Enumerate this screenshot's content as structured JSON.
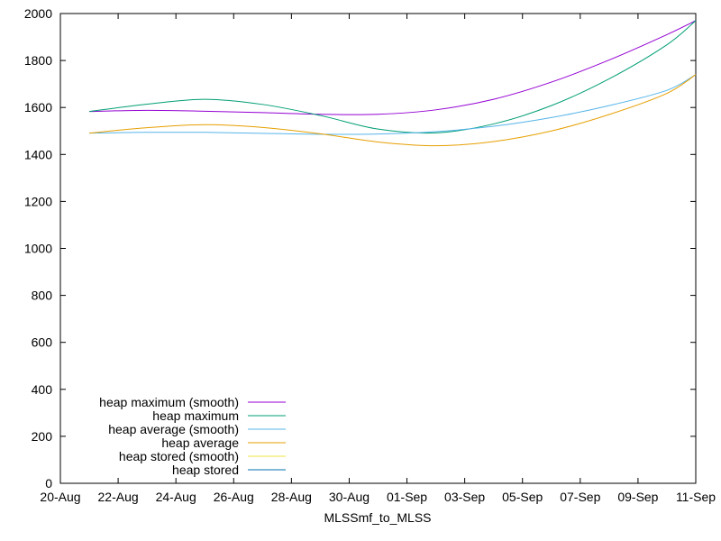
{
  "chart_data": {
    "type": "line",
    "title": "",
    "xlabel": "MLSSmf_to_MLSS",
    "ylabel": "",
    "ylim": [
      0,
      2000
    ],
    "yticks": [
      0,
      200,
      400,
      600,
      800,
      1000,
      1200,
      1400,
      1600,
      1800,
      2000
    ],
    "xlim": [
      "2024-08-20",
      "2024-09-11"
    ],
    "xticks": [
      {
        "date": "2024-08-20",
        "label": "20-Aug"
      },
      {
        "date": "2024-08-22",
        "label": "22-Aug"
      },
      {
        "date": "2024-08-24",
        "label": "24-Aug"
      },
      {
        "date": "2024-08-26",
        "label": "26-Aug"
      },
      {
        "date": "2024-08-28",
        "label": "28-Aug"
      },
      {
        "date": "2024-08-30",
        "label": "30-Aug"
      },
      {
        "date": "2024-09-01",
        "label": "01-Sep"
      },
      {
        "date": "2024-09-03",
        "label": "03-Sep"
      },
      {
        "date": "2024-09-05",
        "label": "05-Sep"
      },
      {
        "date": "2024-09-07",
        "label": "07-Sep"
      },
      {
        "date": "2024-09-09",
        "label": "09-Sep"
      },
      {
        "date": "2024-09-11",
        "label": "11-Sep"
      }
    ],
    "grid": false,
    "legend_position": "bottom-left",
    "series": [
      {
        "name": "heap maximum (smooth)",
        "color": "#9400d3",
        "points": [
          {
            "x": "2024-08-21",
            "y": 1583
          },
          {
            "x": "2024-08-23",
            "y": 1588
          },
          {
            "x": "2024-08-25",
            "y": 1584
          },
          {
            "x": "2024-08-27",
            "y": 1578
          },
          {
            "x": "2024-08-29",
            "y": 1571
          },
          {
            "x": "2024-08-31",
            "y": 1571
          },
          {
            "x": "2024-09-02",
            "y": 1590
          },
          {
            "x": "2024-09-04",
            "y": 1635
          },
          {
            "x": "2024-09-06",
            "y": 1708
          },
          {
            "x": "2024-09-08",
            "y": 1802
          },
          {
            "x": "2024-09-10",
            "y": 1910
          },
          {
            "x": "2024-09-11",
            "y": 1970
          }
        ]
      },
      {
        "name": "heap maximum",
        "color": "#009e73",
        "points": [
          {
            "x": "2024-08-21",
            "y": 1583
          },
          {
            "x": "2024-08-23",
            "y": 1614
          },
          {
            "x": "2024-08-25",
            "y": 1635
          },
          {
            "x": "2024-08-27",
            "y": 1613
          },
          {
            "x": "2024-08-29",
            "y": 1566
          },
          {
            "x": "2024-08-31",
            "y": 1508
          },
          {
            "x": "2024-09-02",
            "y": 1492
          },
          {
            "x": "2024-09-04",
            "y": 1530
          },
          {
            "x": "2024-09-06",
            "y": 1608
          },
          {
            "x": "2024-09-08",
            "y": 1722
          },
          {
            "x": "2024-09-10",
            "y": 1867
          },
          {
            "x": "2024-09-11",
            "y": 1970
          }
        ]
      },
      {
        "name": "heap average (smooth)",
        "color": "#56b4e9",
        "points": [
          {
            "x": "2024-08-21",
            "y": 1491
          },
          {
            "x": "2024-08-23",
            "y": 1494
          },
          {
            "x": "2024-08-25",
            "y": 1494
          },
          {
            "x": "2024-08-27",
            "y": 1490
          },
          {
            "x": "2024-08-29",
            "y": 1486
          },
          {
            "x": "2024-08-31",
            "y": 1487
          },
          {
            "x": "2024-09-02",
            "y": 1497
          },
          {
            "x": "2024-09-04",
            "y": 1520
          },
          {
            "x": "2024-09-06",
            "y": 1557
          },
          {
            "x": "2024-09-08",
            "y": 1608
          },
          {
            "x": "2024-09-10",
            "y": 1673
          },
          {
            "x": "2024-09-11",
            "y": 1740
          }
        ]
      },
      {
        "name": "heap average",
        "color": "#e69f00",
        "points": [
          {
            "x": "2024-08-21",
            "y": 1491
          },
          {
            "x": "2024-08-23",
            "y": 1514
          },
          {
            "x": "2024-08-25",
            "y": 1527
          },
          {
            "x": "2024-08-27",
            "y": 1515
          },
          {
            "x": "2024-08-29",
            "y": 1488
          },
          {
            "x": "2024-08-31",
            "y": 1453
          },
          {
            "x": "2024-09-02",
            "y": 1437
          },
          {
            "x": "2024-09-04",
            "y": 1455
          },
          {
            "x": "2024-09-06",
            "y": 1500
          },
          {
            "x": "2024-09-08",
            "y": 1570
          },
          {
            "x": "2024-09-10",
            "y": 1660
          },
          {
            "x": "2024-09-11",
            "y": 1740
          }
        ]
      },
      {
        "name": "heap stored (smooth)",
        "color": "#f0e442",
        "points": []
      },
      {
        "name": "heap stored",
        "color": "#0072b2",
        "points": []
      }
    ]
  }
}
